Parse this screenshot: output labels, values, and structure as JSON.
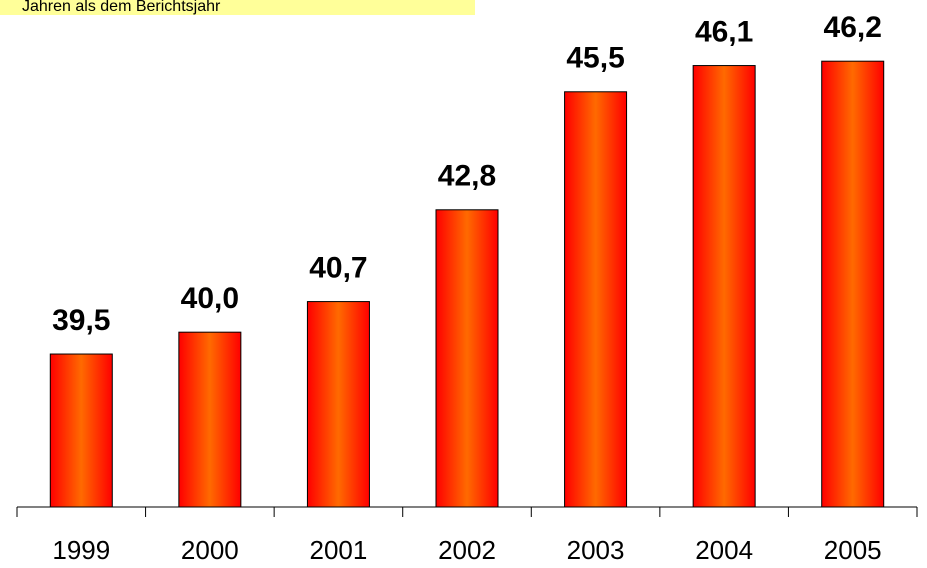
{
  "chart_data": {
    "type": "bar",
    "annotation": "Jahren als dem Berichtsjahr",
    "categories": [
      "1999",
      "2000",
      "2001",
      "2002",
      "2003",
      "2004",
      "2005"
    ],
    "values": [
      39.5,
      40.0,
      40.7,
      42.8,
      45.5,
      46.1,
      46.2
    ],
    "value_labels": [
      "39,5",
      "40,0",
      "40,7",
      "42,8",
      "45,5",
      "46,1",
      "46,2"
    ],
    "color": "#ff0000",
    "ylim": [
      36,
      47.6
    ]
  }
}
